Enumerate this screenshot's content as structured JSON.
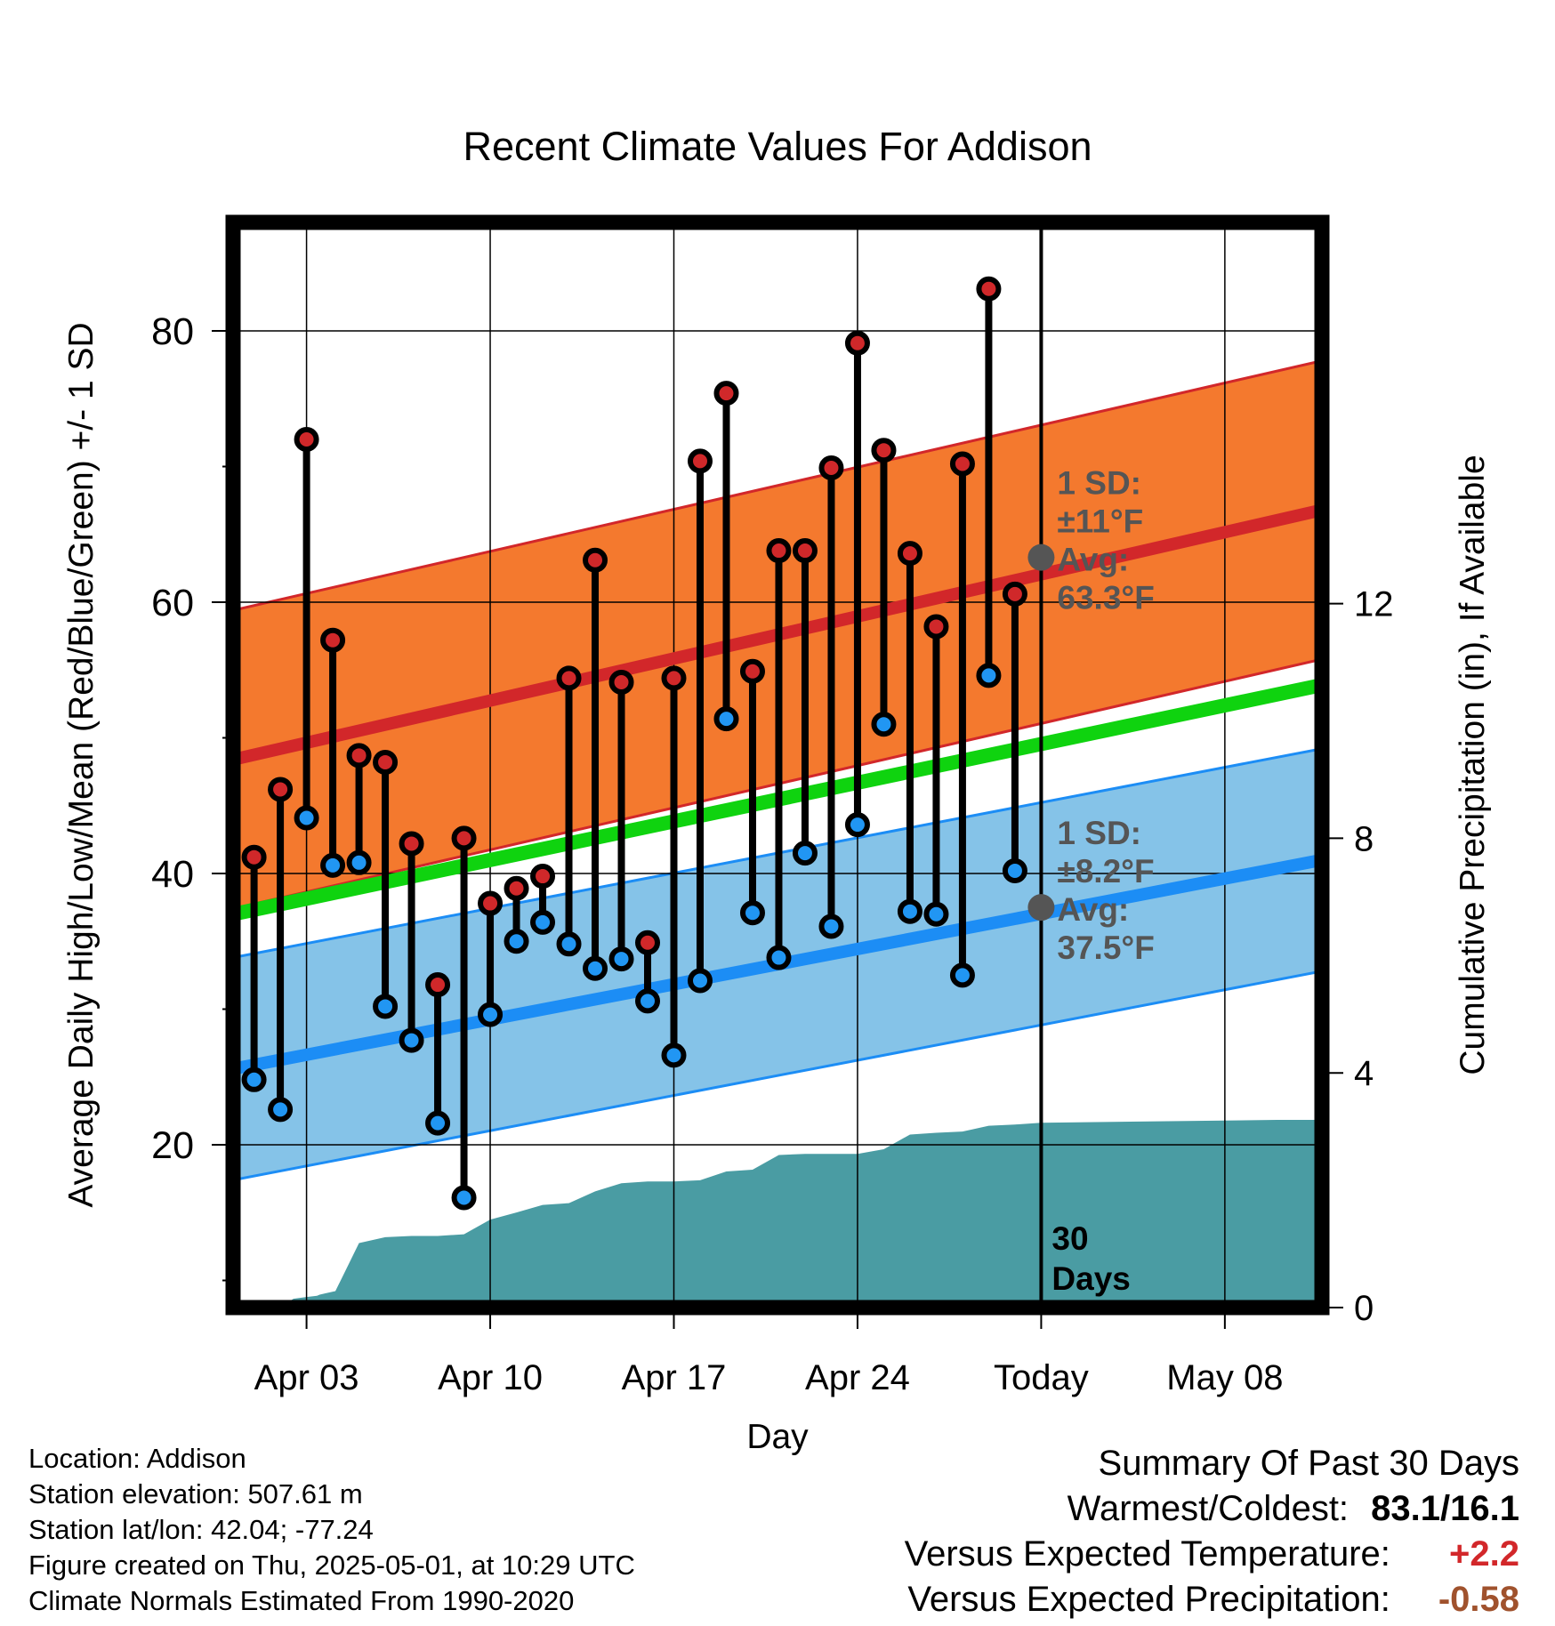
{
  "chart_data": {
    "type": "line",
    "title": "Recent Climate Values For Addison",
    "xlabel": "Day",
    "ylabel": "Average Daily High/Low/Mean (Red/Blue/Green) +/- 1 SD",
    "y2label": "Cumulative Precipitation (in), If Available",
    "ylim": [
      8,
      88
    ],
    "y2lim": [
      0,
      18.5
    ],
    "xlim": [
      0.2,
      41.7
    ],
    "y_ticks": [
      20,
      40,
      60,
      80
    ],
    "y2_ticks": [
      0,
      4,
      8,
      12
    ],
    "x_tick_days": [
      3,
      10,
      17,
      24,
      31,
      38
    ],
    "x_tick_labels": [
      "Apr 03",
      "Apr 10",
      "Apr 17",
      "Apr 24",
      "Today",
      "May 08"
    ],
    "today_day": 31,
    "today_label": "30",
    "today_label2": "Days",
    "days": [
      1,
      2,
      3,
      4,
      5,
      6,
      7,
      8,
      9,
      10,
      11,
      12,
      13,
      14,
      15,
      16,
      17,
      18,
      19,
      20,
      21,
      22,
      23,
      24,
      25,
      26,
      27,
      28,
      29,
      30
    ],
    "daily_high": [
      41.2,
      46.2,
      72.0,
      57.2,
      48.7,
      48.2,
      42.2,
      31.8,
      42.6,
      37.8,
      38.9,
      39.8,
      54.4,
      63.1,
      54.1,
      34.9,
      54.4,
      70.4,
      75.4,
      54.9,
      63.8,
      63.8,
      69.9,
      79.1,
      71.2,
      63.6,
      58.2,
      70.2,
      83.1,
      60.6
    ],
    "daily_low": [
      24.8,
      22.6,
      44.1,
      40.6,
      40.8,
      30.2,
      27.7,
      21.6,
      16.1,
      29.6,
      35.0,
      36.4,
      34.8,
      33.0,
      33.7,
      30.6,
      26.6,
      32.1,
      51.4,
      37.1,
      33.8,
      41.5,
      36.1,
      43.6,
      51.0,
      37.2,
      37.0,
      32.5,
      54.6,
      40.2
    ],
    "normal_high_start": 48.4,
    "normal_high_end": 66.8,
    "normal_low_start": 25.6,
    "normal_low_end": 41.0,
    "normal_mean_start": 37.0,
    "normal_mean_end": 53.9,
    "high_sd": 11,
    "low_sd": 8.2,
    "precip_cumulative": {
      "x": [
        1,
        2,
        2.5,
        3,
        3.4,
        3.5,
        3.7,
        4.1,
        5,
        6,
        7,
        8,
        9,
        10,
        11,
        12,
        13,
        14,
        15,
        16,
        17,
        18,
        19,
        20,
        21,
        22,
        23,
        24,
        25,
        26,
        27,
        28,
        29,
        30,
        31,
        40,
        41.7
      ],
      "y": [
        0,
        0,
        0.15,
        0.18,
        0.2,
        0.22,
        0.24,
        0.28,
        1.1,
        1.2,
        1.22,
        1.22,
        1.25,
        1.5,
        1.62,
        1.75,
        1.78,
        1.98,
        2.12,
        2.15,
        2.15,
        2.17,
        2.32,
        2.35,
        2.6,
        2.62,
        2.62,
        2.62,
        2.7,
        2.95,
        2.98,
        3.0,
        3.1,
        3.12,
        3.15,
        3.2,
        3.2
      ]
    },
    "annotation_high": {
      "line1": "1 SD:",
      "line2": "±11°F",
      "line3": "Avg:",
      "line4": "63.3°F",
      "avg": 63.3
    },
    "annotation_low": {
      "line1": "1 SD:",
      "line2": "±8.2°F",
      "line3": "Avg:",
      "line4": "37.5°F",
      "avg": 37.5
    },
    "colors": {
      "high_band": "#f4792e",
      "high_line": "#d2272a",
      "low_band": "#85c3e8",
      "low_line": "#1c8df5",
      "mean_line": "#0fd30f",
      "precip": "#4a9ca3",
      "high_point": "#d0282a",
      "low_point": "#2196f3",
      "annotation": "#555555",
      "frame": "#000000"
    }
  },
  "footer": {
    "location": "Location: Addison",
    "elevation": "Station elevation: 507.61 m",
    "latlon": "Station lat/lon: 42.04; -77.24",
    "created": "Figure created on Thu, 2025-05-01, at 10:29 UTC",
    "normals": "Climate Normals Estimated From 1990-2020"
  },
  "summary": {
    "title": "Summary Of Past 30 Days",
    "warmest_coldest_label": "Warmest/Coldest:",
    "warmest_coldest_value": "83.1/16.1",
    "temp_label": "Versus Expected Temperature:",
    "temp_value": "+2.2",
    "temp_color": "#d2272a",
    "precip_label": "Versus Expected Precipitation:",
    "precip_value": "-0.58",
    "precip_color": "#a0522d"
  }
}
